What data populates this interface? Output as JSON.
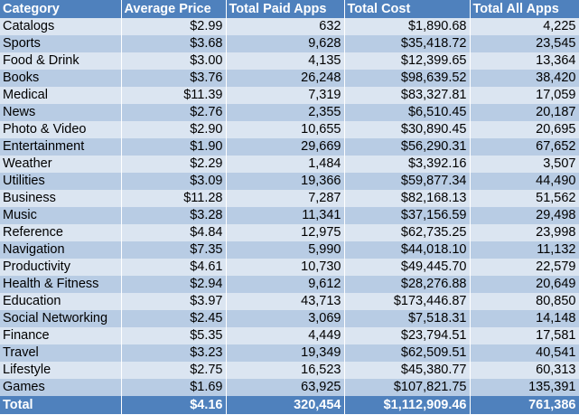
{
  "header": {
    "category": "Category",
    "average_price": "Average Price",
    "total_paid_apps": "Total Paid Apps",
    "total_cost": "Total Cost",
    "total_all_apps": "Total All Apps"
  },
  "rows": [
    {
      "category": "Catalogs",
      "average_price": "$2.99",
      "total_paid_apps": "632",
      "total_cost": "$1,890.68",
      "total_all_apps": "4,225"
    },
    {
      "category": "Sports",
      "average_price": "$3.68",
      "total_paid_apps": "9,628",
      "total_cost": "$35,418.72",
      "total_all_apps": "23,545"
    },
    {
      "category": "Food & Drink",
      "average_price": "$3.00",
      "total_paid_apps": "4,135",
      "total_cost": "$12,399.65",
      "total_all_apps": "13,364"
    },
    {
      "category": "Books",
      "average_price": "$3.76",
      "total_paid_apps": "26,248",
      "total_cost": "$98,639.52",
      "total_all_apps": "38,420"
    },
    {
      "category": "Medical",
      "average_price": "$11.39",
      "total_paid_apps": "7,319",
      "total_cost": "$83,327.81",
      "total_all_apps": "17,059"
    },
    {
      "category": "News",
      "average_price": "$2.76",
      "total_paid_apps": "2,355",
      "total_cost": "$6,510.45",
      "total_all_apps": "20,187"
    },
    {
      "category": "Photo & Video",
      "average_price": "$2.90",
      "total_paid_apps": "10,655",
      "total_cost": "$30,890.45",
      "total_all_apps": "20,695"
    },
    {
      "category": "Entertainment",
      "average_price": "$1.90",
      "total_paid_apps": "29,669",
      "total_cost": "$56,290.31",
      "total_all_apps": "67,652"
    },
    {
      "category": "Weather",
      "average_price": "$2.29",
      "total_paid_apps": "1,484",
      "total_cost": "$3,392.16",
      "total_all_apps": "3,507"
    },
    {
      "category": "Utilities",
      "average_price": "$3.09",
      "total_paid_apps": "19,366",
      "total_cost": "$59,877.34",
      "total_all_apps": "44,490"
    },
    {
      "category": "Business",
      "average_price": "$11.28",
      "total_paid_apps": "7,287",
      "total_cost": "$82,168.13",
      "total_all_apps": "51,562"
    },
    {
      "category": "Music",
      "average_price": "$3.28",
      "total_paid_apps": "11,341",
      "total_cost": "$37,156.59",
      "total_all_apps": "29,498"
    },
    {
      "category": "Reference",
      "average_price": "$4.84",
      "total_paid_apps": "12,975",
      "total_cost": "$62,735.25",
      "total_all_apps": "23,998"
    },
    {
      "category": "Navigation",
      "average_price": "$7.35",
      "total_paid_apps": "5,990",
      "total_cost": "$44,018.10",
      "total_all_apps": "11,132"
    },
    {
      "category": "Productivity",
      "average_price": "$4.61",
      "total_paid_apps": "10,730",
      "total_cost": "$49,445.70",
      "total_all_apps": "22,579"
    },
    {
      "category": "Health & Fitness",
      "average_price": "$2.94",
      "total_paid_apps": "9,612",
      "total_cost": "$28,276.88",
      "total_all_apps": "20,649"
    },
    {
      "category": "Education",
      "average_price": "$3.97",
      "total_paid_apps": "43,713",
      "total_cost": "$173,446.87",
      "total_all_apps": "80,850"
    },
    {
      "category": "Social Networking",
      "average_price": "$2.45",
      "total_paid_apps": "3,069",
      "total_cost": "$7,518.31",
      "total_all_apps": "14,148"
    },
    {
      "category": "Finance",
      "average_price": "$5.35",
      "total_paid_apps": "4,449",
      "total_cost": "$23,794.51",
      "total_all_apps": "17,581"
    },
    {
      "category": "Travel",
      "average_price": "$3.23",
      "total_paid_apps": "19,349",
      "total_cost": "$62,509.51",
      "total_all_apps": "40,541"
    },
    {
      "category": "Lifestyle",
      "average_price": "$2.75",
      "total_paid_apps": "16,523",
      "total_cost": "$45,380.77",
      "total_all_apps": "60,313"
    },
    {
      "category": "Games",
      "average_price": "$1.69",
      "total_paid_apps": "63,925",
      "total_cost": "$107,821.75",
      "total_all_apps": "135,391"
    }
  ],
  "total": {
    "category": "Total",
    "average_price": "$4.16",
    "total_paid_apps": "320,454",
    "total_cost": "$1,112,909.46",
    "total_all_apps": "761,386"
  },
  "colors": {
    "header_bg": "#4f81bd",
    "row_light": "#dbe5f1",
    "row_dark": "#b8cce4"
  }
}
